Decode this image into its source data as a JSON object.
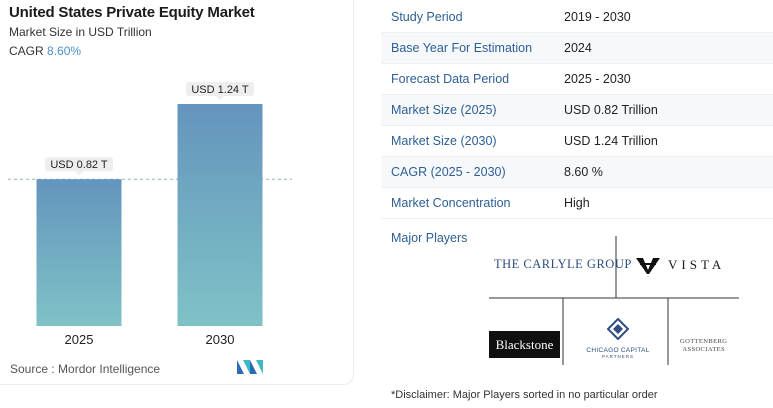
{
  "header": {
    "title": "United States Private Equity Market",
    "subtitle": "Market Size in USD Trillion",
    "cagr_label": "CAGR",
    "cagr_value": "8.60%"
  },
  "chart_data": {
    "type": "bar",
    "categories": [
      "2025",
      "2030"
    ],
    "values": [
      0.82,
      1.24
    ],
    "value_labels": [
      "USD 0.82 T",
      "USD 1.24 T"
    ],
    "title": "United States Private Equity Market",
    "subtitle": "Market Size in USD Trillion",
    "ylim": [
      0,
      1.24
    ],
    "grid": false,
    "reference_line": "dashed line at 2025 value",
    "colors": {
      "bar_top": "#6495bd",
      "bar_bottom": "#7fc2c6",
      "dash": "#8fb3d1"
    }
  },
  "source": "Source :  Mordor Intelligence",
  "info_table": [
    {
      "label": "Study Period",
      "value": "2019 - 2030"
    },
    {
      "label": "Base Year For Estimation",
      "value": "2024"
    },
    {
      "label": "Forecast Data Period",
      "value": "2025 - 2030"
    },
    {
      "label": "Market Size (2025)",
      "value": "USD 0.82 Trillion"
    },
    {
      "label": "Market Size (2030)",
      "value": "USD 1.24 Trillion"
    },
    {
      "label": "CAGR (2025 - 2030)",
      "value": "8.60 %"
    },
    {
      "label": "Market Concentration",
      "value": "High"
    }
  ],
  "major_players": {
    "label": "Major Players",
    "logos": [
      "THE CARLYLE GROUP",
      "VISTA",
      "Blackstone",
      "CHICAGO CAPITAL",
      "GOTTENBERG ASSOCIATES"
    ],
    "chicago_sub": "PARTNERS",
    "gottenberg_line1": "GOTTENBERG",
    "gottenberg_line2": "ASSOCIATES"
  },
  "disclaimer": "*Disclaimer: Major Players sorted in no particular order",
  "colors": {
    "accent": "#2c5f95",
    "cagr": "#4a90c9"
  }
}
